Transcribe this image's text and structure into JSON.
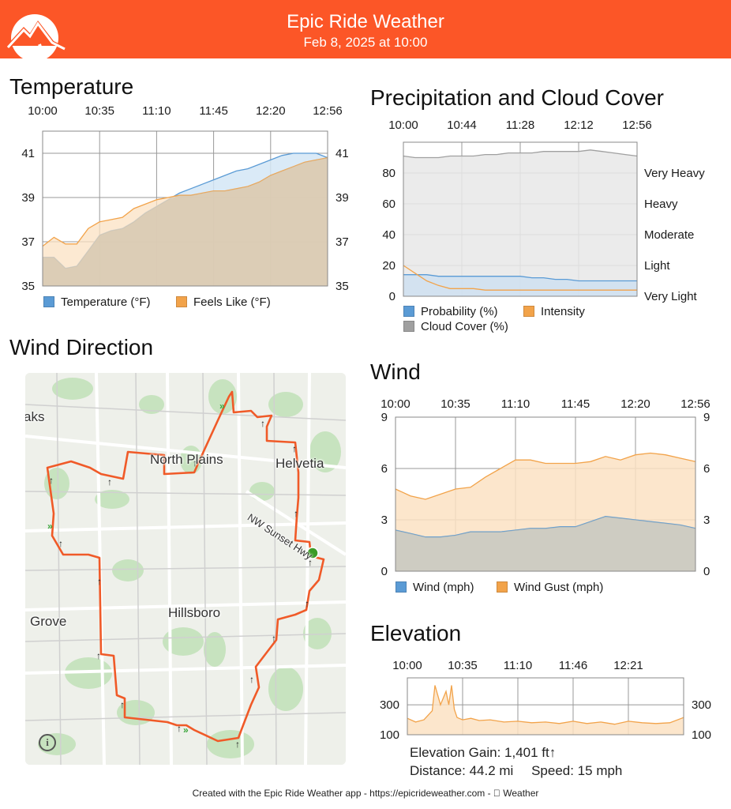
{
  "header": {
    "title": "Epic Ride Weather",
    "subtitle": "Feb 8, 2025 at 10:00",
    "bg_color": "#fc5627"
  },
  "sections": {
    "temperature": "Temperature",
    "precipitation": "Precipitation and Cloud Cover",
    "wind_direction": "Wind Direction",
    "wind": "Wind",
    "elevation": "Elevation"
  },
  "map": {
    "labels": {
      "north_plains": "North Plains",
      "helvetia": "Helvetia",
      "hillsboro": "Hillsboro",
      "grove": "Grove",
      "sunset_hwy": "NW Sunset Hwy",
      "oaks": "aks"
    },
    "info_icon": "i",
    "route_color": "#f05a28"
  },
  "elevation_stats": {
    "gain": "Elevation Gain: 1,401 ft↑",
    "distance": "Distance: 44.2 mi",
    "speed": "Speed: 15 mph"
  },
  "footer": "Created with the Epic Ride Weather app - https://epicrideweather.com -  Weather",
  "chart_data": [
    {
      "id": "temperature",
      "type": "area",
      "x_ticks": [
        "10:00",
        "10:35",
        "11:10",
        "11:45",
        "12:20",
        "12:56"
      ],
      "y_ticks": [
        "35",
        "37",
        "39",
        "41"
      ],
      "ylim": [
        35,
        42
      ],
      "x": [
        0,
        0.04,
        0.08,
        0.12,
        0.16,
        0.2,
        0.24,
        0.28,
        0.32,
        0.36,
        0.4,
        0.44,
        0.48,
        0.52,
        0.56,
        0.6,
        0.64,
        0.68,
        0.72,
        0.76,
        0.8,
        0.84,
        0.88,
        0.92,
        0.96,
        1.0
      ],
      "series": [
        {
          "name": "Temperature (°F)",
          "color": "#5b9bd5",
          "fill": "#d4e6f6",
          "values": [
            36.3,
            36.3,
            35.8,
            35.9,
            36.6,
            37.3,
            37.5,
            37.6,
            37.9,
            38.3,
            38.6,
            38.9,
            39.2,
            39.4,
            39.6,
            39.8,
            40.0,
            40.2,
            40.3,
            40.5,
            40.7,
            40.9,
            41.0,
            41.0,
            41.0,
            40.8
          ]
        },
        {
          "name": "Feels Like (°F)",
          "color": "#f2a34a",
          "fill": "#fbe2c3",
          "values": [
            36.8,
            37.2,
            36.9,
            36.9,
            37.6,
            37.9,
            38.0,
            38.1,
            38.5,
            38.7,
            38.9,
            39.0,
            39.1,
            39.1,
            39.2,
            39.3,
            39.3,
            39.4,
            39.5,
            39.7,
            40.0,
            40.2,
            40.4,
            40.6,
            40.7,
            40.8
          ]
        }
      ]
    },
    {
      "id": "precipitation",
      "type": "area",
      "x_ticks": [
        "10:00",
        "10:44",
        "11:28",
        "12:12",
        "12:56"
      ],
      "y_ticks": [
        "0",
        "20",
        "40",
        "60",
        "80"
      ],
      "right_labels": [
        "Very Light",
        "Light",
        "Moderate",
        "Heavy",
        "Very Heavy"
      ],
      "ylim": [
        0,
        100
      ],
      "x": [
        0,
        0.05,
        0.1,
        0.15,
        0.2,
        0.25,
        0.3,
        0.35,
        0.4,
        0.45,
        0.5,
        0.55,
        0.6,
        0.65,
        0.7,
        0.75,
        0.8,
        0.85,
        0.9,
        0.95,
        1.0
      ],
      "series": [
        {
          "name": "Probability (%)",
          "color": "#5b9bd5",
          "fill": "#cfe1f1",
          "values": [
            14,
            14,
            14,
            13,
            13,
            13,
            13,
            13,
            13,
            13,
            13,
            12,
            12,
            11,
            11,
            10,
            10,
            10,
            10,
            10,
            10
          ]
        },
        {
          "name": "Intensity",
          "color": "#f2a34a",
          "fill": "none",
          "values": [
            20,
            15,
            10,
            7,
            5,
            5,
            5,
            4,
            4,
            4,
            4,
            4,
            4,
            4,
            4,
            4,
            4,
            4,
            4,
            4,
            4
          ]
        },
        {
          "name": "Cloud Cover (%)",
          "color": "#a0a0a0",
          "fill": "#e8e8e8",
          "values": [
            91,
            90,
            90,
            90,
            91,
            91,
            91,
            92,
            92,
            93,
            93,
            93,
            94,
            94,
            94,
            94,
            95,
            94,
            93,
            92,
            91
          ]
        }
      ]
    },
    {
      "id": "wind",
      "type": "area",
      "x_ticks": [
        "10:00",
        "10:35",
        "11:10",
        "11:45",
        "12:20",
        "12:56"
      ],
      "y_ticks": [
        "0",
        "3",
        "6",
        "9"
      ],
      "ylim": [
        0,
        9
      ],
      "x": [
        0,
        0.05,
        0.1,
        0.15,
        0.2,
        0.25,
        0.3,
        0.35,
        0.4,
        0.45,
        0.5,
        0.55,
        0.6,
        0.65,
        0.7,
        0.75,
        0.8,
        0.85,
        0.9,
        0.95,
        1.0
      ],
      "series": [
        {
          "name": "Wind (mph)",
          "color": "#5b9bd5",
          "fill": "#cfe1f1",
          "values": [
            2.4,
            2.2,
            2.0,
            2.0,
            2.1,
            2.3,
            2.3,
            2.3,
            2.4,
            2.5,
            2.5,
            2.6,
            2.6,
            2.9,
            3.2,
            3.1,
            3.0,
            2.9,
            2.8,
            2.7,
            2.5
          ]
        },
        {
          "name": "Wind Gust (mph)",
          "color": "#f2a34a",
          "fill": "#fbe2c3",
          "values": [
            4.8,
            4.4,
            4.2,
            4.5,
            4.8,
            4.9,
            5.5,
            6.0,
            6.5,
            6.5,
            6.3,
            6.3,
            6.3,
            6.4,
            6.7,
            6.5,
            6.8,
            6.9,
            6.8,
            6.6,
            6.4
          ]
        }
      ]
    },
    {
      "id": "elevation",
      "type": "area",
      "x_ticks": [
        "10:00",
        "10:35",
        "11:10",
        "11:46",
        "12:21"
      ],
      "y_ticks": [
        "100",
        "300"
      ],
      "ylim": [
        100,
        480
      ],
      "x": [
        0,
        0.03,
        0.06,
        0.09,
        0.1,
        0.12,
        0.14,
        0.15,
        0.16,
        0.17,
        0.18,
        0.2,
        0.23,
        0.26,
        0.3,
        0.35,
        0.4,
        0.45,
        0.5,
        0.55,
        0.6,
        0.65,
        0.7,
        0.75,
        0.8,
        0.85,
        0.9,
        0.95,
        1.0
      ],
      "series": [
        {
          "name": "Elevation",
          "color": "#f2a34a",
          "fill": "#fbe2c3",
          "values": [
            210,
            185,
            200,
            260,
            430,
            300,
            390,
            300,
            430,
            270,
            215,
            200,
            210,
            195,
            200,
            185,
            190,
            180,
            185,
            175,
            190,
            175,
            185,
            170,
            190,
            180,
            175,
            180,
            215
          ]
        }
      ]
    }
  ]
}
